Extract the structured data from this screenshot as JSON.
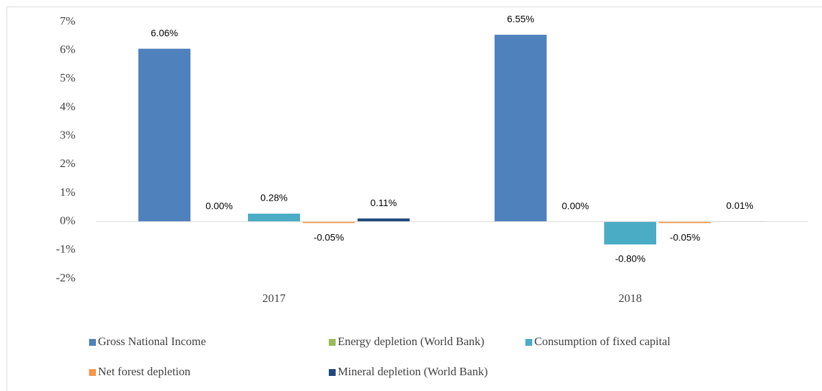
{
  "chart_data": {
    "type": "bar",
    "categories": [
      "2017",
      "2018"
    ],
    "series": [
      {
        "name": "Gross National Income",
        "color": "#4f81bd",
        "values": [
          6.06,
          6.55
        ],
        "value_labels": [
          "6.06%",
          "6.55%"
        ]
      },
      {
        "name": "Energy depletion (World Bank)",
        "color": "#9bbb59",
        "values": [
          0.0,
          0.0
        ],
        "value_labels": [
          "0.00%",
          "0.00%"
        ]
      },
      {
        "name": "Consumption of fixed capital",
        "color": "#4bacc6",
        "values": [
          0.28,
          -0.8
        ],
        "value_labels": [
          "0.28%",
          "-0.80%"
        ]
      },
      {
        "name": "Net forest depletion",
        "color": "#f79646",
        "values": [
          -0.05,
          -0.05
        ],
        "value_labels": [
          "-0.05%",
          "-0.05%"
        ]
      },
      {
        "name": "Mineral depletion (World Bank)",
        "color": "#1f497d",
        "values": [
          0.11,
          0.01
        ],
        "value_labels": [
          "0.11%",
          "0.01%"
        ]
      }
    ],
    "ylim": [
      -2,
      7
    ],
    "yticks": [
      {
        "value": -2,
        "label": "-2%"
      },
      {
        "value": -1,
        "label": "-1%"
      },
      {
        "value": 0,
        "label": "0%"
      },
      {
        "value": 1,
        "label": "1%"
      },
      {
        "value": 2,
        "label": "2%"
      },
      {
        "value": 3,
        "label": "3%"
      },
      {
        "value": 4,
        "label": "4%"
      },
      {
        "value": 5,
        "label": "5%"
      },
      {
        "value": 6,
        "label": "6%"
      },
      {
        "value": 7,
        "label": "7%"
      }
    ],
    "grid": false,
    "legend": "bottom"
  }
}
